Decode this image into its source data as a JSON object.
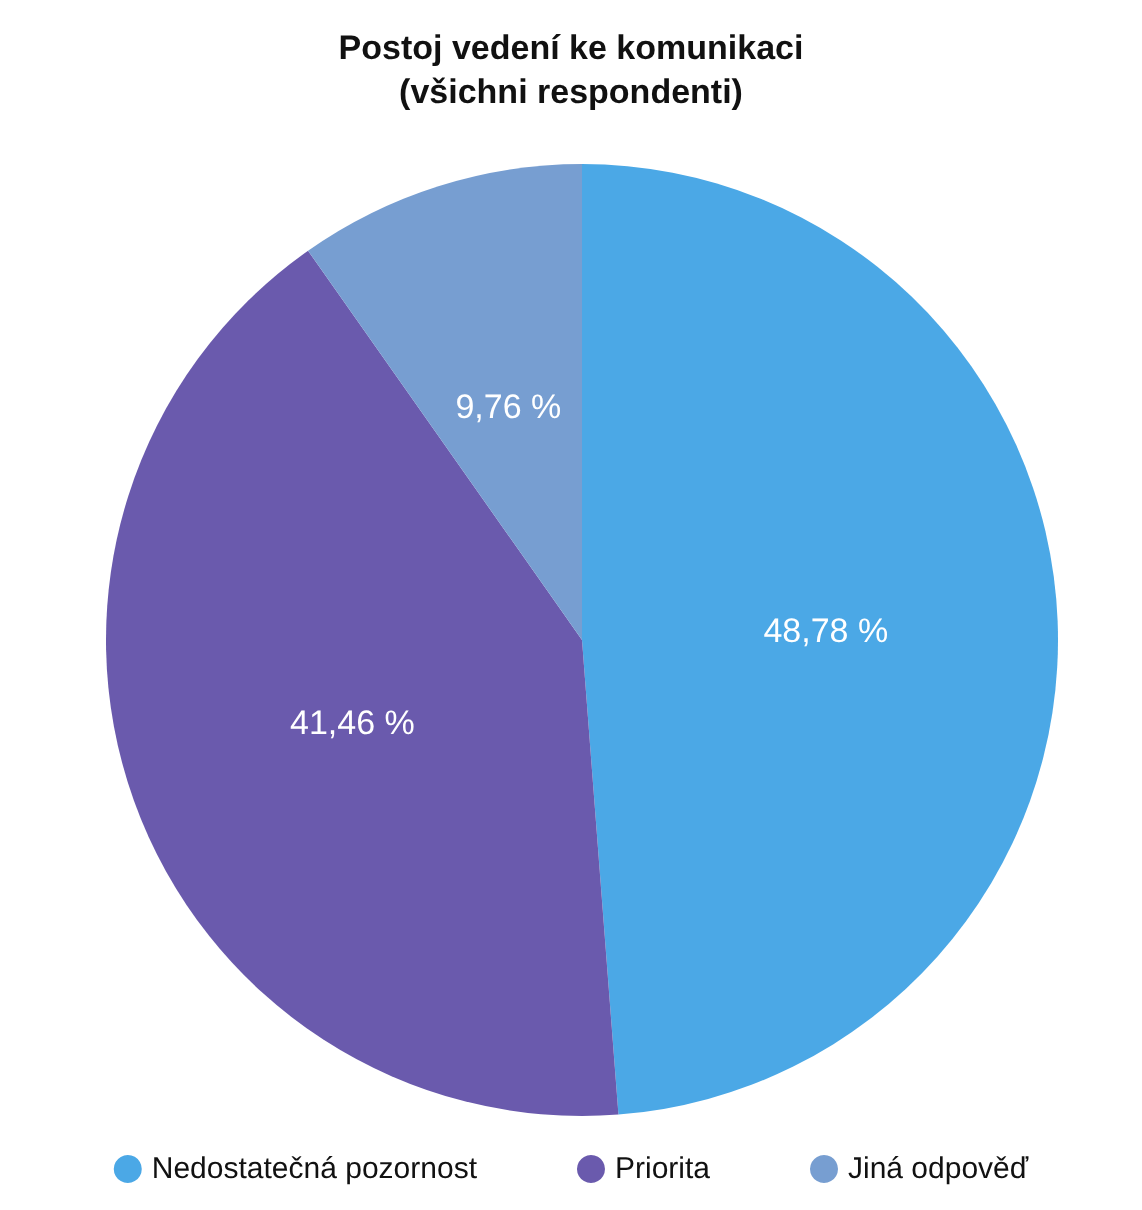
{
  "chart_data": {
    "type": "pie",
    "title": "Postoj vedení ke komunikaci\n(všichni respondenti)",
    "categories": [
      "Nedostatečná pozornost",
      "Priorita",
      "Jiná odpověď"
    ],
    "values": [
      48.78,
      41.46,
      9.76
    ],
    "colors": [
      "#4ba8e6",
      "#6a5aad",
      "#779ed1"
    ],
    "value_labels": [
      "48,78 %",
      "41,46 %",
      "9,76 %"
    ],
    "legend": "bottom"
  }
}
